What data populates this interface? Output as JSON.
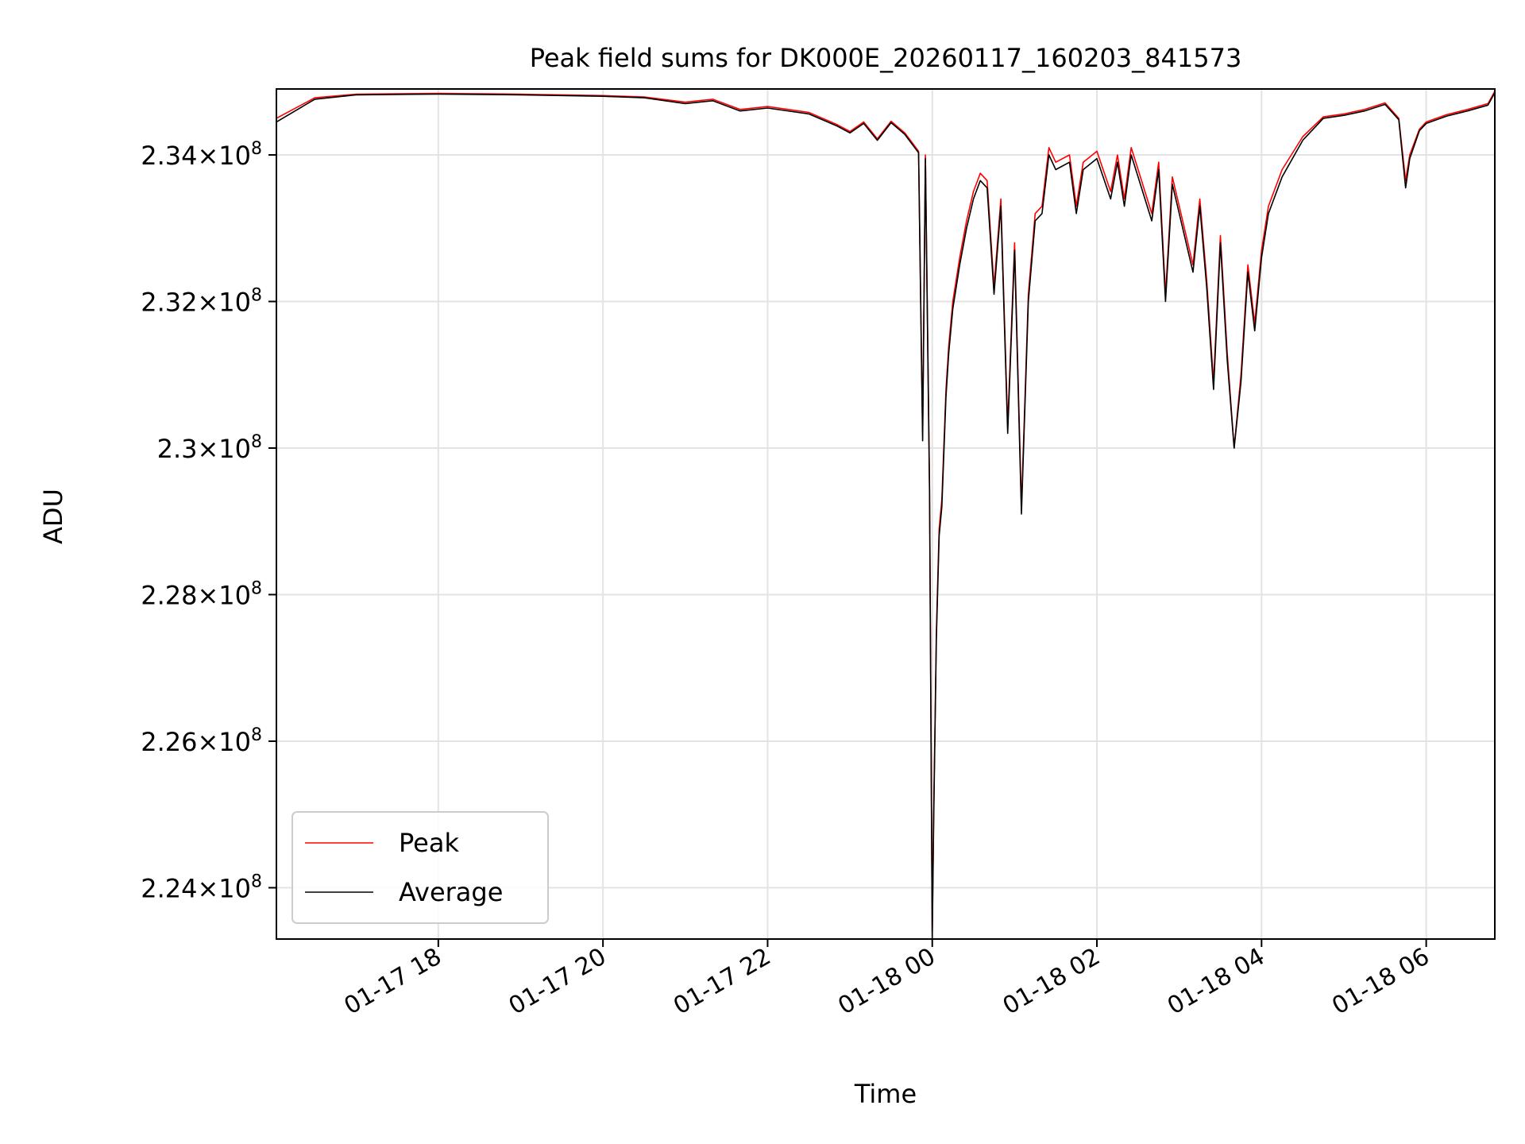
{
  "chart_data": {
    "type": "line",
    "title": "Peak field sums for DK000E_20260117_160203_841573",
    "xlabel": "Time",
    "ylabel": "ADU",
    "x_range": [
      "2026-01-17 16:02",
      "2026-01-18 06:50"
    ],
    "ylim": [
      223300000,
      234900000
    ],
    "x_ticks": [
      {
        "t": "2026-01-17 18:00",
        "label": "01-17 18"
      },
      {
        "t": "2026-01-17 20:00",
        "label": "01-17 20"
      },
      {
        "t": "2026-01-17 22:00",
        "label": "01-17 22"
      },
      {
        "t": "2026-01-18 00:00",
        "label": "01-18 00"
      },
      {
        "t": "2026-01-18 02:00",
        "label": "01-18 02"
      },
      {
        "t": "2026-01-18 04:00",
        "label": "01-18 04"
      },
      {
        "t": "2026-01-18 06:00",
        "label": "01-18 06"
      }
    ],
    "y_ticks": [
      {
        "value": 234000000,
        "mantissa": "2.34"
      },
      {
        "value": 232000000,
        "mantissa": "2.32"
      },
      {
        "value": 230000000,
        "mantissa": "2.3"
      },
      {
        "value": 228000000,
        "mantissa": "2.28"
      },
      {
        "value": 226000000,
        "mantissa": "2.26"
      },
      {
        "value": 224000000,
        "mantissa": "2.24"
      }
    ],
    "y_tick_suffix": {
      "times": "×",
      "base": "10",
      "exponent": "8"
    },
    "grid": true,
    "legend_position": "lower-left",
    "series": [
      {
        "name": "Peak",
        "color": "#ff0000",
        "points": [
          [
            "2026-01-17 16:02",
            234500000
          ],
          [
            "2026-01-17 16:30",
            234780000
          ],
          [
            "2026-01-17 17:00",
            234830000
          ],
          [
            "2026-01-17 18:00",
            234840000
          ],
          [
            "2026-01-17 19:00",
            234830000
          ],
          [
            "2026-01-17 20:00",
            234810000
          ],
          [
            "2026-01-17 20:30",
            234790000
          ],
          [
            "2026-01-17 21:00",
            234720000
          ],
          [
            "2026-01-17 21:20",
            234760000
          ],
          [
            "2026-01-17 21:40",
            234620000
          ],
          [
            "2026-01-17 22:00",
            234660000
          ],
          [
            "2026-01-17 22:30",
            234580000
          ],
          [
            "2026-01-17 22:50",
            234420000
          ],
          [
            "2026-01-17 23:00",
            234320000
          ],
          [
            "2026-01-17 23:10",
            234450000
          ],
          [
            "2026-01-17 23:20",
            234220000
          ],
          [
            "2026-01-17 23:30",
            234460000
          ],
          [
            "2026-01-17 23:40",
            234300000
          ],
          [
            "2026-01-17 23:50",
            234050000
          ],
          [
            "2026-01-17 23:53",
            230200000
          ],
          [
            "2026-01-17 23:55",
            234000000
          ],
          [
            "2026-01-17 23:58",
            229500000
          ],
          [
            "2026-01-18 00:00",
            223400000
          ],
          [
            "2026-01-18 00:01",
            225000000
          ],
          [
            "2026-01-18 00:03",
            227500000
          ],
          [
            "2026-01-18 00:05",
            228900000
          ],
          [
            "2026-01-18 00:07",
            229300000
          ],
          [
            "2026-01-18 00:10",
            230800000
          ],
          [
            "2026-01-18 00:12",
            231400000
          ],
          [
            "2026-01-18 00:15",
            232000000
          ],
          [
            "2026-01-18 00:20",
            232600000
          ],
          [
            "2026-01-18 00:25",
            233100000
          ],
          [
            "2026-01-18 00:30",
            233500000
          ],
          [
            "2026-01-18 00:35",
            233750000
          ],
          [
            "2026-01-18 00:40",
            233650000
          ],
          [
            "2026-01-18 00:45",
            232200000
          ],
          [
            "2026-01-18 00:50",
            233400000
          ],
          [
            "2026-01-18 00:55",
            230300000
          ],
          [
            "2026-01-18 01:00",
            232800000
          ],
          [
            "2026-01-18 01:05",
            229200000
          ],
          [
            "2026-01-18 01:10",
            232100000
          ],
          [
            "2026-01-18 01:15",
            233200000
          ],
          [
            "2026-01-18 01:20",
            233300000
          ],
          [
            "2026-01-18 01:25",
            234100000
          ],
          [
            "2026-01-18 01:30",
            233900000
          ],
          [
            "2026-01-18 01:40",
            234000000
          ],
          [
            "2026-01-18 01:45",
            233300000
          ],
          [
            "2026-01-18 01:50",
            233900000
          ],
          [
            "2026-01-18 02:00",
            234050000
          ],
          [
            "2026-01-18 02:10",
            233500000
          ],
          [
            "2026-01-18 02:15",
            234000000
          ],
          [
            "2026-01-18 02:20",
            233400000
          ],
          [
            "2026-01-18 02:25",
            234100000
          ],
          [
            "2026-01-18 02:30",
            233800000
          ],
          [
            "2026-01-18 02:40",
            233200000
          ],
          [
            "2026-01-18 02:45",
            233900000
          ],
          [
            "2026-01-18 02:50",
            232100000
          ],
          [
            "2026-01-18 02:55",
            233700000
          ],
          [
            "2026-01-18 03:00",
            233300000
          ],
          [
            "2026-01-18 03:10",
            232500000
          ],
          [
            "2026-01-18 03:15",
            233400000
          ],
          [
            "2026-01-18 03:20",
            232300000
          ],
          [
            "2026-01-18 03:25",
            230900000
          ],
          [
            "2026-01-18 03:30",
            232900000
          ],
          [
            "2026-01-18 03:35",
            231300000
          ],
          [
            "2026-01-18 03:40",
            230000000
          ],
          [
            "2026-01-18 03:45",
            231000000
          ],
          [
            "2026-01-18 03:50",
            232500000
          ],
          [
            "2026-01-18 03:55",
            231700000
          ],
          [
            "2026-01-18 04:00",
            232700000
          ],
          [
            "2026-01-18 04:05",
            233300000
          ],
          [
            "2026-01-18 04:15",
            233800000
          ],
          [
            "2026-01-18 04:30",
            234250000
          ],
          [
            "2026-01-18 04:45",
            234520000
          ],
          [
            "2026-01-18 05:00",
            234560000
          ],
          [
            "2026-01-18 05:15",
            234620000
          ],
          [
            "2026-01-18 05:30",
            234710000
          ],
          [
            "2026-01-18 05:40",
            234500000
          ],
          [
            "2026-01-18 05:45",
            233650000
          ],
          [
            "2026-01-18 05:48",
            234000000
          ],
          [
            "2026-01-18 05:55",
            234350000
          ],
          [
            "2026-01-18 06:00",
            234450000
          ],
          [
            "2026-01-18 06:15",
            234550000
          ],
          [
            "2026-01-18 06:30",
            234620000
          ],
          [
            "2026-01-18 06:45",
            234700000
          ],
          [
            "2026-01-18 06:50",
            234870000
          ]
        ]
      },
      {
        "name": "Average",
        "color": "#000000",
        "points": [
          [
            "2026-01-17 16:02",
            234450000
          ],
          [
            "2026-01-17 16:30",
            234760000
          ],
          [
            "2026-01-17 17:00",
            234820000
          ],
          [
            "2026-01-17 18:00",
            234830000
          ],
          [
            "2026-01-17 19:00",
            234820000
          ],
          [
            "2026-01-17 20:00",
            234800000
          ],
          [
            "2026-01-17 20:30",
            234780000
          ],
          [
            "2026-01-17 21:00",
            234700000
          ],
          [
            "2026-01-17 21:20",
            234740000
          ],
          [
            "2026-01-17 21:40",
            234600000
          ],
          [
            "2026-01-17 22:00",
            234640000
          ],
          [
            "2026-01-17 22:30",
            234560000
          ],
          [
            "2026-01-17 22:50",
            234400000
          ],
          [
            "2026-01-17 23:00",
            234300000
          ],
          [
            "2026-01-17 23:10",
            234430000
          ],
          [
            "2026-01-17 23:20",
            234200000
          ],
          [
            "2026-01-17 23:30",
            234440000
          ],
          [
            "2026-01-17 23:40",
            234280000
          ],
          [
            "2026-01-17 23:50",
            234030000
          ],
          [
            "2026-01-17 23:53",
            230100000
          ],
          [
            "2026-01-17 23:55",
            233950000
          ],
          [
            "2026-01-17 23:58",
            229400000
          ],
          [
            "2026-01-18 00:00",
            223300000
          ],
          [
            "2026-01-18 00:01",
            224900000
          ],
          [
            "2026-01-18 00:03",
            227400000
          ],
          [
            "2026-01-18 00:05",
            228800000
          ],
          [
            "2026-01-18 00:07",
            229200000
          ],
          [
            "2026-01-18 00:10",
            230700000
          ],
          [
            "2026-01-18 00:12",
            231300000
          ],
          [
            "2026-01-18 00:15",
            231900000
          ],
          [
            "2026-01-18 00:20",
            232500000
          ],
          [
            "2026-01-18 00:25",
            233000000
          ],
          [
            "2026-01-18 00:30",
            233400000
          ],
          [
            "2026-01-18 00:35",
            233650000
          ],
          [
            "2026-01-18 00:40",
            233550000
          ],
          [
            "2026-01-18 00:45",
            232100000
          ],
          [
            "2026-01-18 00:50",
            233300000
          ],
          [
            "2026-01-18 00:55",
            230200000
          ],
          [
            "2026-01-18 01:00",
            232700000
          ],
          [
            "2026-01-18 01:05",
            229100000
          ],
          [
            "2026-01-18 01:10",
            232000000
          ],
          [
            "2026-01-18 01:15",
            233100000
          ],
          [
            "2026-01-18 01:20",
            233200000
          ],
          [
            "2026-01-18 01:25",
            234000000
          ],
          [
            "2026-01-18 01:30",
            233800000
          ],
          [
            "2026-01-18 01:40",
            233900000
          ],
          [
            "2026-01-18 01:45",
            233200000
          ],
          [
            "2026-01-18 01:50",
            233800000
          ],
          [
            "2026-01-18 02:00",
            233950000
          ],
          [
            "2026-01-18 02:10",
            233400000
          ],
          [
            "2026-01-18 02:15",
            233900000
          ],
          [
            "2026-01-18 02:20",
            233300000
          ],
          [
            "2026-01-18 02:25",
            234000000
          ],
          [
            "2026-01-18 02:30",
            233700000
          ],
          [
            "2026-01-18 02:40",
            233100000
          ],
          [
            "2026-01-18 02:45",
            233800000
          ],
          [
            "2026-01-18 02:50",
            232000000
          ],
          [
            "2026-01-18 02:55",
            233600000
          ],
          [
            "2026-01-18 03:00",
            233200000
          ],
          [
            "2026-01-18 03:10",
            232400000
          ],
          [
            "2026-01-18 03:15",
            233300000
          ],
          [
            "2026-01-18 03:20",
            232200000
          ],
          [
            "2026-01-18 03:25",
            230800000
          ],
          [
            "2026-01-18 03:30",
            232800000
          ],
          [
            "2026-01-18 03:35",
            231200000
          ],
          [
            "2026-01-18 03:40",
            230000000
          ],
          [
            "2026-01-18 03:45",
            230900000
          ],
          [
            "2026-01-18 03:50",
            232400000
          ],
          [
            "2026-01-18 03:55",
            231600000
          ],
          [
            "2026-01-18 04:00",
            232600000
          ],
          [
            "2026-01-18 04:05",
            233200000
          ],
          [
            "2026-01-18 04:15",
            233700000
          ],
          [
            "2026-01-18 04:30",
            234200000
          ],
          [
            "2026-01-18 04:45",
            234500000
          ],
          [
            "2026-01-18 05:00",
            234540000
          ],
          [
            "2026-01-18 05:15",
            234600000
          ],
          [
            "2026-01-18 05:30",
            234690000
          ],
          [
            "2026-01-18 05:40",
            234480000
          ],
          [
            "2026-01-18 05:45",
            233550000
          ],
          [
            "2026-01-18 05:48",
            233950000
          ],
          [
            "2026-01-18 05:55",
            234330000
          ],
          [
            "2026-01-18 06:00",
            234430000
          ],
          [
            "2026-01-18 06:15",
            234530000
          ],
          [
            "2026-01-18 06:30",
            234600000
          ],
          [
            "2026-01-18 06:45",
            234680000
          ],
          [
            "2026-01-18 06:50",
            234850000
          ]
        ]
      }
    ]
  }
}
